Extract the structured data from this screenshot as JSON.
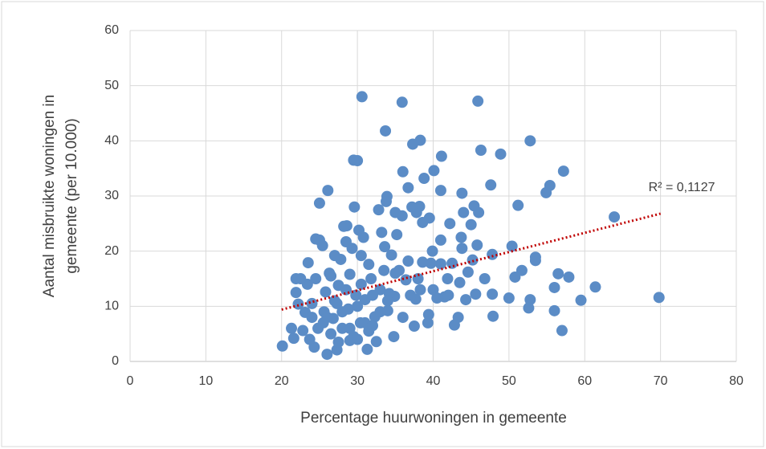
{
  "chart_data": {
    "type": "scatter",
    "x_label": "Percentage huurwoningen in gemeente",
    "y_label": [
      "Aantal misbruikte woningen in",
      "gemeente (per 10.000)"
    ],
    "annotation": "R² = 0,1127",
    "color": "#5b8cc6",
    "trendline": {
      "color": "#c00000",
      "x": [
        20,
        70
      ],
      "y": [
        9.4,
        26.8
      ]
    },
    "xlim": [
      0,
      80
    ],
    "xticks": [
      0,
      10,
      20,
      30,
      40,
      50,
      60,
      70,
      80
    ],
    "ylim": [
      0,
      60
    ],
    "yticks": [
      0,
      10,
      20,
      30,
      40,
      50,
      60
    ],
    "grid": true,
    "x": [
      69.8,
      63.9,
      61.4,
      59.5,
      57.9,
      57.2,
      57,
      56.5,
      56,
      56,
      55.4,
      54.9,
      53.5,
      53.5,
      52.8,
      52.8,
      52.6,
      51.7,
      51.2,
      50.8,
      50.4,
      50,
      48.9,
      47.6,
      47.8,
      47.8,
      47.9,
      46.8,
      46.3,
      46,
      45.9,
      45.8,
      45.6,
      45.4,
      45.2,
      45,
      44.6,
      44.3,
      44,
      43.8,
      43.7,
      43.8,
      43.5,
      43.3,
      42.8,
      42.5,
      42.2,
      41.9,
      41.5,
      41.1,
      41,
      41,
      41,
      40.5,
      40.1,
      39.9,
      39.7,
      39.5,
      39.4,
      39.3,
      38.8,
      38.6,
      38.6,
      38.3,
      38.3,
      38.2,
      37.8,
      37.7,
      37.5,
      37.3,
      37.2,
      36.7,
      36.7,
      36.4,
      36,
      35.9,
      35.9,
      35.5,
      35.2,
      35,
      34.9,
      34.8,
      34.5,
      34.2,
      34,
      33.9,
      33.8,
      33.7,
      33.6,
      33.5,
      33.2,
      33,
      32.8,
      32.5,
      32.3,
      31.8,
      31.5,
      31.3,
      31,
      30.8,
      30.6,
      30.5,
      30.4,
      30.2,
      30,
      29.8,
      29.6,
      29.5,
      29.5,
      29.3,
      29,
      28.8,
      28.6,
      28.5,
      28.2,
      28,
      27.8,
      27.5,
      27.3,
      27.3,
      27,
      26.8,
      26.5,
      26.3,
      26.1,
      26,
      25.8,
      25.6,
      25.4,
      25,
      25,
      24.8,
      24.5,
      24.5,
      24.3,
      24,
      23.7,
      23.5,
      23.4,
      23.1,
      22.8,
      22.5,
      22.2,
      21.9,
      21.9,
      21.6,
      21.3,
      20.1,
      26,
      27,
      28,
      29,
      30,
      31,
      32,
      33,
      28.5,
      30.5,
      26.5,
      29,
      31.5,
      27.5,
      32,
      25.5,
      24,
      30,
      34,
      36,
      37,
      38,
      40,
      42,
      35
    ],
    "y": [
      11.6,
      26.2,
      13.5,
      11.1,
      15.3,
      34.5,
      5.6,
      15.9,
      13.4,
      9.2,
      31.9,
      30.6,
      18.9,
      18.3,
      40,
      11.2,
      9.7,
      16.5,
      28.3,
      15.3,
      20.9,
      11.5,
      37.6,
      32,
      19.4,
      12.2,
      8.2,
      15,
      38.3,
      27,
      47.2,
      21.1,
      12.2,
      28.2,
      18.4,
      24.8,
      16.2,
      11.2,
      27,
      30.5,
      22.5,
      20.5,
      14.3,
      8,
      6.6,
      17.8,
      25,
      15,
      11.7,
      37.2,
      31,
      22,
      17.7,
      11.5,
      34.6,
      20,
      17.8,
      26,
      8.5,
      7,
      33.2,
      25.2,
      18,
      13,
      40.1,
      28.1,
      27,
      11.3,
      6.4,
      39.4,
      28,
      31.5,
      18.2,
      14.8,
      34.4,
      47,
      26.4,
      16.5,
      23,
      27,
      11.8,
      4.5,
      19.3,
      12.3,
      9.2,
      29.9,
      29,
      41.8,
      20.8,
      16.5,
      23.4,
      13,
      27.5,
      3.6,
      8.1,
      15,
      17.6,
      2.2,
      11.2,
      22.5,
      48,
      19.2,
      7,
      23.8,
      36.4,
      12,
      28,
      36.5,
      4.5,
      20.5,
      15.8,
      9.5,
      24.6,
      21.7,
      24.5,
      6,
      18.5,
      13.8,
      10.5,
      2.1,
      19.2,
      7.8,
      15.5,
      16,
      31,
      1.3,
      12.6,
      9,
      21,
      28.7,
      22,
      6,
      22.2,
      15,
      2.6,
      10.5,
      4,
      17.9,
      14,
      8.9,
      5.6,
      15,
      10.4,
      12.5,
      15,
      4.2,
      6,
      2.8,
      8,
      11,
      9,
      6,
      10,
      7,
      12,
      9,
      13,
      14,
      5,
      3.8,
      5.5,
      3.5,
      6.5,
      7,
      8,
      4,
      11,
      8,
      12,
      15,
      13,
      12,
      16
    ]
  }
}
